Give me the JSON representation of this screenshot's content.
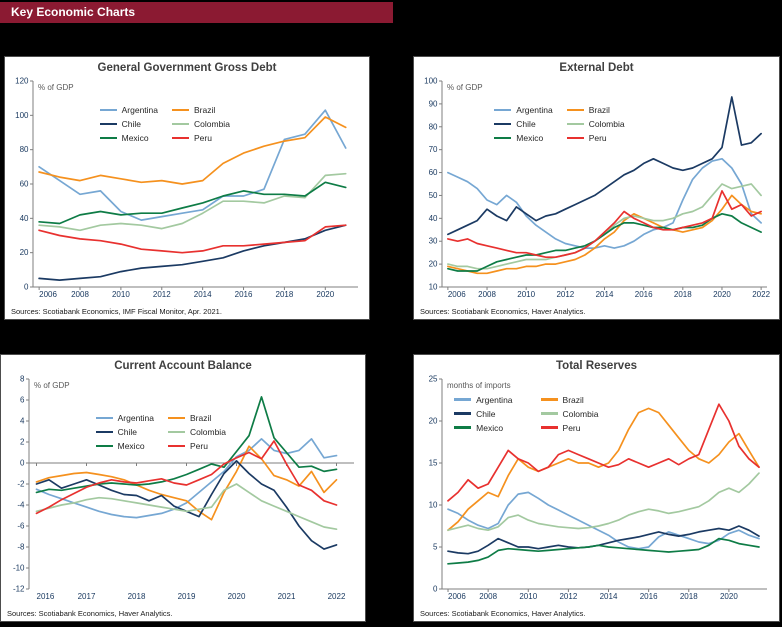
{
  "header": {
    "title": "Key Economic Charts",
    "background_color": "#8B1A32",
    "text_color": "#ffffff"
  },
  "colors": {
    "argentina": "#76A7D3",
    "brazil": "#F5911E",
    "chile": "#1B3A63",
    "colombia": "#A3C9A0",
    "mexico": "#0E7C46",
    "peru": "#E8312F",
    "page_background": "#000000"
  },
  "chart_data": [
    {
      "type": "line",
      "title": "General Government Gross Debt",
      "unit_label": "% of GDP",
      "xlabel": "",
      "ylabel": "% of GDP",
      "source": "Sources: Scotiabank Economics, IMF Fiscal Monitor, Apr. 2021.",
      "x_start": 2006,
      "x_step": 1,
      "xlim": [
        2005.7,
        2021.6
      ],
      "ylim": [
        0,
        120
      ],
      "yticks": [
        0,
        20,
        40,
        60,
        80,
        100,
        120
      ],
      "xticks": [
        2006,
        2008,
        2010,
        2012,
        2014,
        2016,
        2018,
        2020
      ],
      "grid": "off",
      "legend_pos": {
        "left": "26%",
        "top": "13%"
      },
      "legend_gap": "14px",
      "series": [
        {
          "name": "Argentina",
          "color": "#76A7D3",
          "values": [
            70,
            62,
            54,
            56,
            44,
            39,
            41,
            43,
            45,
            53,
            53,
            57,
            86,
            89,
            103,
            81
          ]
        },
        {
          "name": "Brazil",
          "color": "#F5911E",
          "values": [
            67,
            64,
            62,
            65,
            63,
            61,
            62,
            60,
            62,
            72,
            78,
            82,
            85,
            87,
            99,
            93
          ]
        },
        {
          "name": "Chile",
          "color": "#1B3A63",
          "values": [
            5,
            4,
            5,
            6,
            9,
            11,
            12,
            13,
            15,
            17,
            21,
            24,
            26,
            28,
            33,
            36
          ]
        },
        {
          "name": "Colombia",
          "color": "#A3C9A0",
          "values": [
            36,
            35,
            33,
            36,
            37,
            36,
            34,
            37,
            43,
            50,
            50,
            49,
            53,
            52,
            65,
            66
          ]
        },
        {
          "name": "Mexico",
          "color": "#0E7C46",
          "values": [
            38,
            37,
            42,
            44,
            42,
            43,
            43,
            46,
            49,
            53,
            56,
            54,
            54,
            53,
            61,
            58
          ]
        },
        {
          "name": "Peru",
          "color": "#E8312F",
          "values": [
            33,
            30,
            28,
            27,
            25,
            22,
            21,
            20,
            21,
            24,
            24,
            25,
            26,
            27,
            35,
            36
          ]
        }
      ]
    },
    {
      "type": "line",
      "title": "External Debt",
      "unit_label": "% of GDP",
      "xlabel": "",
      "ylabel": "% of GDP",
      "source": "Sources: Scotiabank Economics, Haver Analytics.",
      "x_start": 2006,
      "x_step": 0.5,
      "xlim": [
        2005.7,
        2022.3
      ],
      "ylim": [
        10,
        100
      ],
      "yticks": [
        10,
        20,
        30,
        40,
        50,
        60,
        70,
        80,
        90,
        100
      ],
      "xticks": [
        2006,
        2008,
        2010,
        2012,
        2014,
        2016,
        2018,
        2020,
        2022
      ],
      "grid": "off",
      "legend_pos": {
        "left": "22%",
        "top": "13%"
      },
      "legend_gap": "14px",
      "series": [
        {
          "name": "Argentina",
          "color": "#76A7D3",
          "values": [
            60,
            58,
            56,
            53,
            48,
            46,
            50,
            47,
            41,
            37,
            34,
            31,
            29,
            28,
            27,
            27,
            28,
            27,
            28,
            30,
            33,
            35,
            36,
            38,
            48,
            57,
            62,
            65,
            66,
            62,
            55,
            42,
            38
          ]
        },
        {
          "name": "Brazil",
          "color": "#F5911E",
          "values": [
            19,
            18,
            17,
            16,
            16,
            17,
            18,
            18,
            19,
            19,
            20,
            20,
            21,
            22,
            24,
            27,
            31,
            34,
            39,
            42,
            40,
            38,
            36,
            35,
            34,
            35,
            36,
            39,
            44,
            50,
            46,
            43,
            42
          ]
        },
        {
          "name": "Chile",
          "color": "#1B3A63",
          "values": [
            33,
            35,
            37,
            39,
            44,
            41,
            39,
            45,
            42,
            39,
            41,
            42,
            44,
            46,
            48,
            50,
            53,
            56,
            59,
            61,
            64,
            66,
            64,
            62,
            61,
            62,
            64,
            66,
            71,
            93,
            72,
            73,
            77
          ]
        },
        {
          "name": "Colombia",
          "color": "#A3C9A0",
          "values": [
            20,
            19,
            19,
            18,
            18,
            19,
            20,
            21,
            22,
            22,
            22,
            23,
            24,
            25,
            27,
            30,
            33,
            37,
            40,
            41,
            40,
            39,
            39,
            40,
            42,
            43,
            45,
            50,
            55,
            53,
            54,
            55,
            50
          ]
        },
        {
          "name": "Mexico",
          "color": "#0E7C46",
          "values": [
            18,
            17,
            17,
            17,
            19,
            21,
            22,
            23,
            24,
            24,
            25,
            26,
            26,
            27,
            28,
            30,
            33,
            36,
            38,
            38,
            37,
            36,
            36,
            35,
            36,
            36,
            37,
            40,
            42,
            41,
            38,
            36,
            34
          ]
        },
        {
          "name": "Peru",
          "color": "#E8312F",
          "values": [
            31,
            30,
            31,
            29,
            28,
            27,
            26,
            25,
            25,
            24,
            23,
            23,
            24,
            25,
            27,
            30,
            34,
            38,
            43,
            40,
            38,
            36,
            35,
            35,
            36,
            37,
            38,
            40,
            52,
            44,
            46,
            41,
            43
          ]
        }
      ]
    },
    {
      "type": "line",
      "title": "Current Account Balance",
      "unit_label": "% of GDP",
      "xlabel": "",
      "ylabel": "% of GDP",
      "source": "Sources: Scotiabank Economics, Haver Analytics.",
      "x_start": 2016,
      "x_step": 0.25,
      "xlim": [
        2015.85,
        2022.35
      ],
      "ylim": [
        -12,
        8
      ],
      "yticks": [
        -12,
        -10,
        -8,
        -6,
        -4,
        -2,
        0,
        2,
        4,
        6,
        8
      ],
      "xticks": [
        2016,
        2017,
        2018,
        2019,
        2020,
        2021,
        2022
      ],
      "axis_y": 0,
      "grid": "off",
      "legend_pos": {
        "left": "26%",
        "top": "17%"
      },
      "legend_gap": "14px",
      "series": [
        {
          "name": "Argentina",
          "color": "#76A7D3",
          "values": [
            -2.5,
            -3.0,
            -3.4,
            -3.8,
            -4.2,
            -4.6,
            -4.9,
            -5.1,
            -5.2,
            -5.0,
            -4.8,
            -4.4,
            -3.8,
            -2.8,
            -1.8,
            -0.8,
            0.6,
            1.2,
            2.3,
            1.2,
            0.9,
            1.2,
            2.3,
            0.5,
            0.7
          ]
        },
        {
          "name": "Brazil",
          "color": "#F5911E",
          "values": [
            -1.8,
            -1.4,
            -1.2,
            -1.0,
            -0.9,
            -1.1,
            -1.3,
            -1.6,
            -2.1,
            -2.6,
            -3.0,
            -3.3,
            -3.6,
            -4.6,
            -5.4,
            -2.8,
            -0.8,
            1.6,
            0.4,
            -1.2,
            -1.6,
            -2.2,
            -0.8,
            -2.8,
            -1.6
          ]
        },
        {
          "name": "Chile",
          "color": "#1B3A63",
          "values": [
            -2.0,
            -1.6,
            -2.4,
            -2.0,
            -1.6,
            -2.1,
            -2.6,
            -3.0,
            -3.1,
            -3.6,
            -3.1,
            -4.1,
            -4.6,
            -5.1,
            -3.0,
            -1.0,
            0.2,
            -1.0,
            -2.0,
            -2.6,
            -4.2,
            -6.0,
            -7.4,
            -8.2,
            -7.8
          ]
        },
        {
          "name": "Colombia",
          "color": "#A3C9A0",
          "values": [
            -4.6,
            -4.3,
            -4.0,
            -3.8,
            -3.5,
            -3.3,
            -3.4,
            -3.6,
            -3.8,
            -4.0,
            -4.2,
            -4.4,
            -4.6,
            -4.4,
            -4.2,
            -2.6,
            -2.0,
            -2.8,
            -3.6,
            -4.1,
            -4.6,
            -5.1,
            -5.6,
            -6.1,
            -6.3
          ]
        },
        {
          "name": "Mexico",
          "color": "#0E7C46",
          "values": [
            -2.8,
            -2.5,
            -2.6,
            -2.4,
            -2.2,
            -2.0,
            -1.9,
            -2.0,
            -2.1,
            -2.0,
            -1.8,
            -1.5,
            -1.1,
            -0.6,
            -0.1,
            -0.4,
            1.1,
            2.6,
            6.3,
            2.4,
            1.0,
            -0.4,
            -0.3,
            -0.8,
            -0.6
          ]
        },
        {
          "name": "Peru",
          "color": "#E8312F",
          "values": [
            -4.8,
            -4.2,
            -3.5,
            -2.9,
            -2.3,
            -1.9,
            -1.6,
            -1.8,
            -1.9,
            -1.7,
            -1.5,
            -1.9,
            -2.1,
            -1.6,
            -1.1,
            -0.1,
            0.5,
            1.0,
            0.4,
            2.1,
            -0.1,
            -2.1,
            -2.6,
            -3.6,
            -4.0
          ]
        }
      ]
    },
    {
      "type": "line",
      "title": "Total Reserves",
      "unit_label": "months of imports",
      "xlabel": "",
      "ylabel": "months of imports",
      "source": "Sources: Scotiabank Economics, Haver Analytics.",
      "x_start": 2006,
      "x_step": 0.5,
      "xlim": [
        2005.7,
        2021.9
      ],
      "ylim": [
        0,
        25
      ],
      "yticks": [
        0,
        5,
        10,
        15,
        20,
        25
      ],
      "xticks": [
        2006,
        2008,
        2010,
        2012,
        2014,
        2016,
        2018,
        2020
      ],
      "grid": "off",
      "legend_pos": {
        "left": "11%",
        "top": "9%"
      },
      "legend_gap": "28px",
      "series": [
        {
          "name": "Argentina",
          "color": "#76A7D3",
          "values": [
            9.5,
            9.0,
            8.2,
            7.6,
            7.2,
            7.8,
            10.0,
            11.3,
            11.5,
            10.8,
            10.0,
            9.4,
            8.8,
            8.2,
            7.6,
            7.0,
            6.4,
            5.6,
            5.0,
            4.8,
            5.0,
            6.2,
            6.8,
            6.4,
            6.0,
            5.6,
            5.4,
            5.8,
            6.6,
            7.0,
            6.4,
            6.0
          ]
        },
        {
          "name": "Brazil",
          "color": "#F5911E",
          "values": [
            7.0,
            8.0,
            9.5,
            10.5,
            11.5,
            11.0,
            13.5,
            15.5,
            14.5,
            14.0,
            14.5,
            15.0,
            15.5,
            15.0,
            15.0,
            14.5,
            15.0,
            16.5,
            19.0,
            21.0,
            21.5,
            21.0,
            19.5,
            18.0,
            16.5,
            15.5,
            15.0,
            16.0,
            17.5,
            18.5,
            16.5,
            14.5
          ]
        },
        {
          "name": "Chile",
          "color": "#1B3A63",
          "values": [
            4.5,
            4.3,
            4.2,
            4.5,
            5.2,
            6.0,
            5.5,
            5.0,
            5.0,
            4.8,
            5.0,
            5.2,
            5.0,
            4.9,
            5.0,
            5.2,
            5.5,
            5.8,
            6.0,
            6.2,
            6.5,
            6.8,
            6.5,
            6.3,
            6.5,
            6.8,
            7.0,
            7.2,
            7.0,
            7.5,
            7.0,
            6.3
          ]
        },
        {
          "name": "Colombia",
          "color": "#A3C9A0",
          "values": [
            7.0,
            7.3,
            7.6,
            7.2,
            7.0,
            7.4,
            8.5,
            8.8,
            8.2,
            7.8,
            7.6,
            7.4,
            7.3,
            7.2,
            7.3,
            7.5,
            7.8,
            8.2,
            8.8,
            9.2,
            9.5,
            9.3,
            9.0,
            9.2,
            9.5,
            9.8,
            10.5,
            11.5,
            12.0,
            11.5,
            12.5,
            13.8
          ]
        },
        {
          "name": "Mexico",
          "color": "#0E7C46",
          "values": [
            3.0,
            3.1,
            3.2,
            3.4,
            3.8,
            4.6,
            4.8,
            4.7,
            4.6,
            4.5,
            4.6,
            4.7,
            4.8,
            4.9,
            5.0,
            5.2,
            5.0,
            4.9,
            4.8,
            4.7,
            4.6,
            4.5,
            4.4,
            4.5,
            4.6,
            4.7,
            5.2,
            6.0,
            5.8,
            5.4,
            5.2,
            5.0
          ]
        },
        {
          "name": "Peru",
          "color": "#E8312F",
          "values": [
            10.5,
            11.5,
            13.0,
            12.0,
            12.5,
            14.5,
            16.5,
            15.5,
            15.0,
            14.0,
            14.5,
            16.0,
            16.5,
            16.0,
            15.5,
            15.0,
            14.5,
            14.8,
            15.5,
            15.0,
            14.5,
            15.0,
            15.5,
            14.8,
            15.5,
            16.0,
            19.0,
            22.0,
            20.0,
            17.0,
            15.5,
            14.5
          ]
        }
      ]
    }
  ]
}
